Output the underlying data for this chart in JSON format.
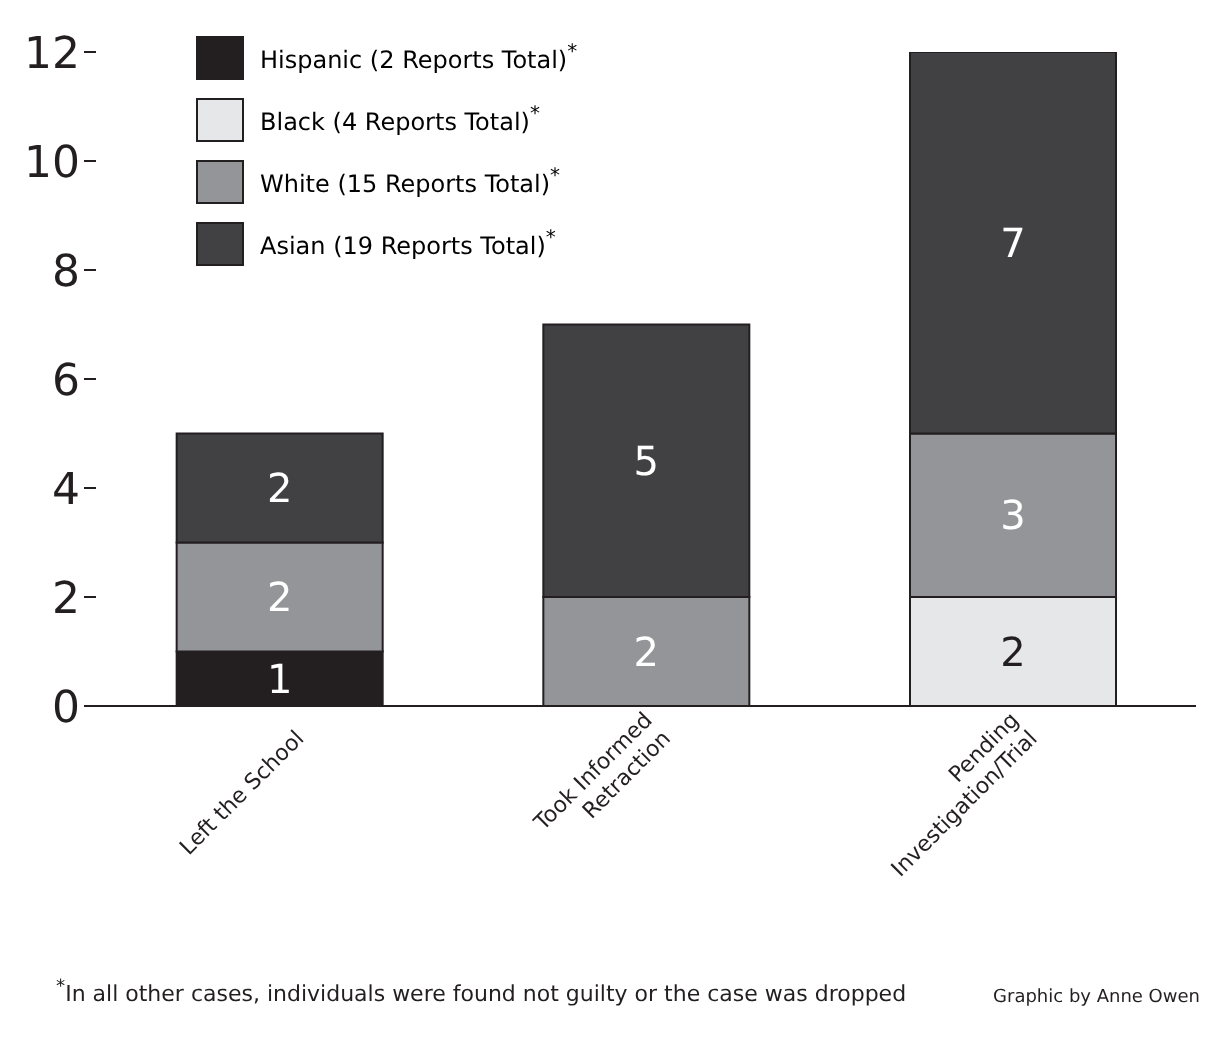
{
  "chart_data": {
    "type": "bar",
    "stacked": true,
    "categories": [
      "Left the School",
      "Took Informed Retraction",
      "Pending Investigation/Trial"
    ],
    "series": [
      {
        "name": "Hispanic (2 Reports Total)$^{*}$",
        "color": "#231f20",
        "values": [
          1,
          0,
          0
        ],
        "value_labels": [
          "1",
          null,
          null
        ]
      },
      {
        "name": "Black (4 Reports Total)$^{*}$",
        "color": "#e6e7e8",
        "values": [
          0,
          0,
          2
        ],
        "value_labels": [
          null,
          null,
          "2"
        ]
      },
      {
        "name": "White (15 Reports Total)$^{*}$",
        "color": "#939598",
        "values": [
          2,
          2,
          3
        ],
        "value_labels": [
          "2",
          "2",
          "3"
        ]
      },
      {
        "name": "Asian (19 Reports Total)$^{*}$",
        "color": "#414042",
        "values": [
          2,
          5,
          7
        ],
        "value_labels": [
          "2",
          "5",
          "7"
        ]
      }
    ],
    "ylim": [
      0,
      12
    ],
    "yticks": [
      0,
      2,
      4,
      6,
      8,
      10,
      12
    ],
    "grid": false,
    "legend": "top left",
    "annotations": [
      "$^{*}$In all other cases, individuals were found not guilty or the case was dropped",
      "Graphic by Anne Owen"
    ]
  }
}
